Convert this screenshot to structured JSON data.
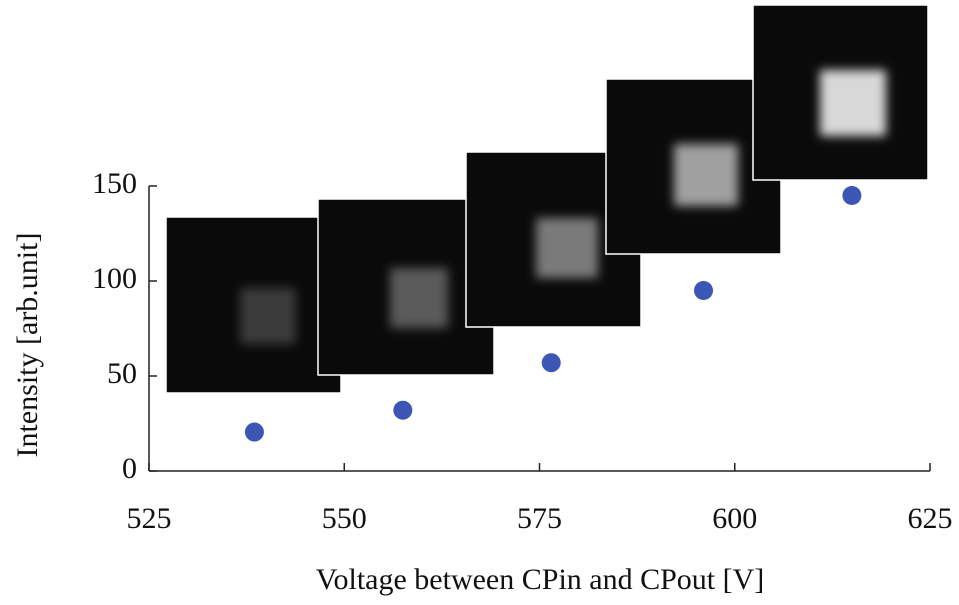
{
  "chart_data": {
    "type": "scatter",
    "x_label": "Voltage between CPin and CPout [V]",
    "y_label": "Intensity [arb.unit]",
    "x": [
      538.5,
      557.5,
      576.5,
      596,
      615
    ],
    "values": [
      20.5,
      32,
      57,
      95,
      145
    ],
    "color": "#3b56b4",
    "xlim": [
      525,
      625
    ],
    "xticks": [
      525,
      550,
      575,
      600,
      625
    ],
    "ylim": [
      0,
      150
    ],
    "yticks": [
      0,
      50,
      100,
      150
    ]
  }
}
